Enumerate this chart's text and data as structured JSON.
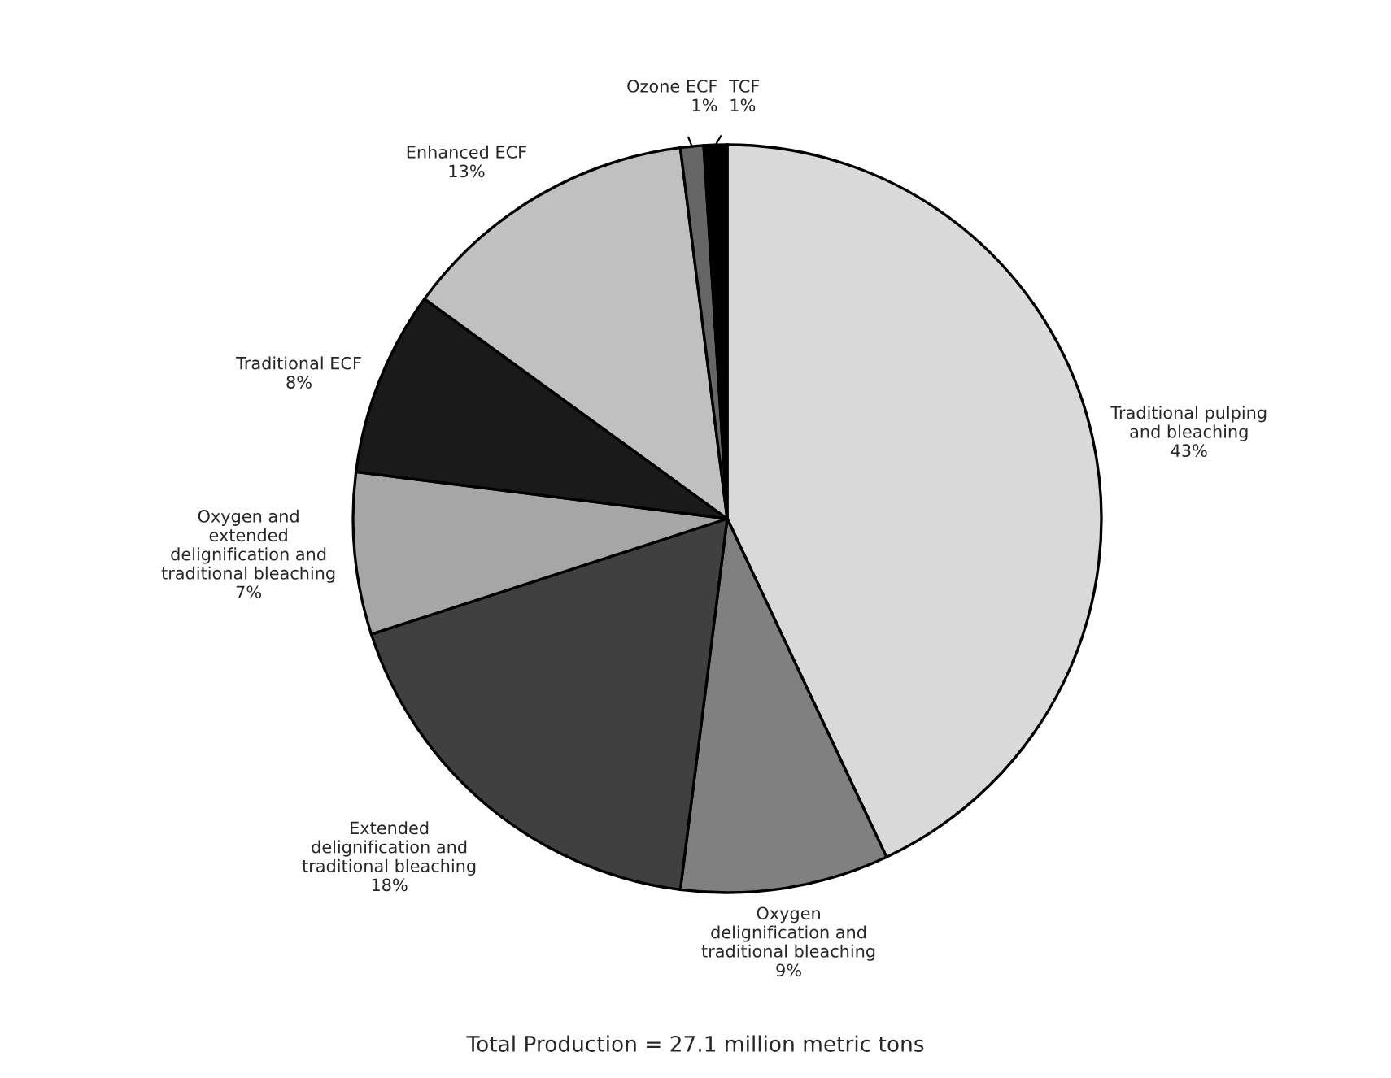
{
  "chart_data": {
    "type": "pie",
    "categories": [
      "Traditional pulping\nand bleaching",
      "Oxygen\ndelignification and\ntraditional bleaching",
      "Extended\ndelignification and\ntraditional bleaching",
      "Oxygen and\nextended\ndelignification and\ntraditional bleaching",
      "Traditional ECF",
      "Enhanced ECF",
      "Ozone ECF",
      "TCF"
    ],
    "values": [
      43,
      9,
      18,
      7,
      8,
      13,
      1,
      1
    ],
    "value_labels": [
      "43%",
      "9%",
      "18%",
      "7%",
      "8%",
      "13%",
      "1%",
      "1%"
    ],
    "colors": [
      "#d9d9d9",
      "#808080",
      "#404040",
      "#a6a6a6",
      "#1a1a1a",
      "#c0c0c0",
      "#666666",
      "#000000"
    ],
    "annotations": [
      "Total Production = 27.1 million metric tons"
    ]
  }
}
